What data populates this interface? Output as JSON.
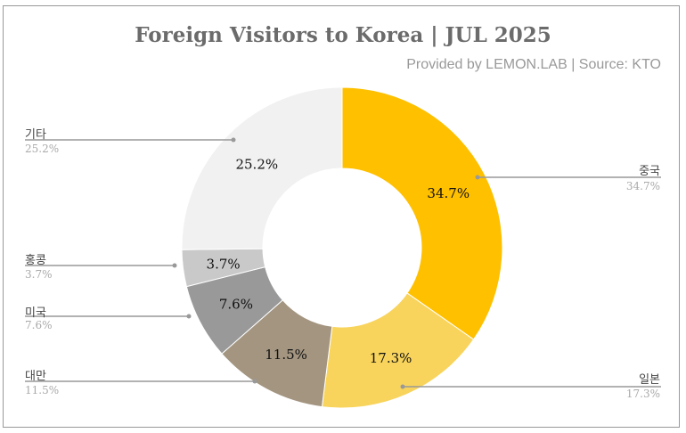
{
  "title": "Foreign Visitors to Korea | JUL 2025",
  "subtitle": "Provided by LEMON.LAB | Source: KTO",
  "chart_data": {
    "type": "pie",
    "variant": "donut",
    "title": "Foreign Visitors to Korea | JUL 2025",
    "subtitle": "Provided by LEMON.LAB | Source: KTO",
    "categories": [
      "중국",
      "일본",
      "대만",
      "미국",
      "홍콩",
      "기타"
    ],
    "values": [
      34.7,
      17.3,
      11.5,
      7.6,
      3.7,
      25.2
    ],
    "unit": "%",
    "colors": [
      "#ffc000",
      "#f8d45c",
      "#a39580",
      "#999999",
      "#c9c9c9",
      "#f1f1f1"
    ],
    "data_labels": [
      "34.7%",
      "17.3%",
      "11.5%",
      "7.6%",
      "3.7%",
      "25.2%"
    ],
    "legend": "leader-line labels"
  },
  "labels": {
    "china": {
      "name": "중국",
      "pct": "34.7%"
    },
    "japan": {
      "name": "일본",
      "pct": "17.3%"
    },
    "taiwan": {
      "name": "대만",
      "pct": "11.5%"
    },
    "usa": {
      "name": "미국",
      "pct": "7.6%"
    },
    "hongkong": {
      "name": "홍콩",
      "pct": "3.7%"
    },
    "other": {
      "name": "기타",
      "pct": "25.2%"
    }
  }
}
